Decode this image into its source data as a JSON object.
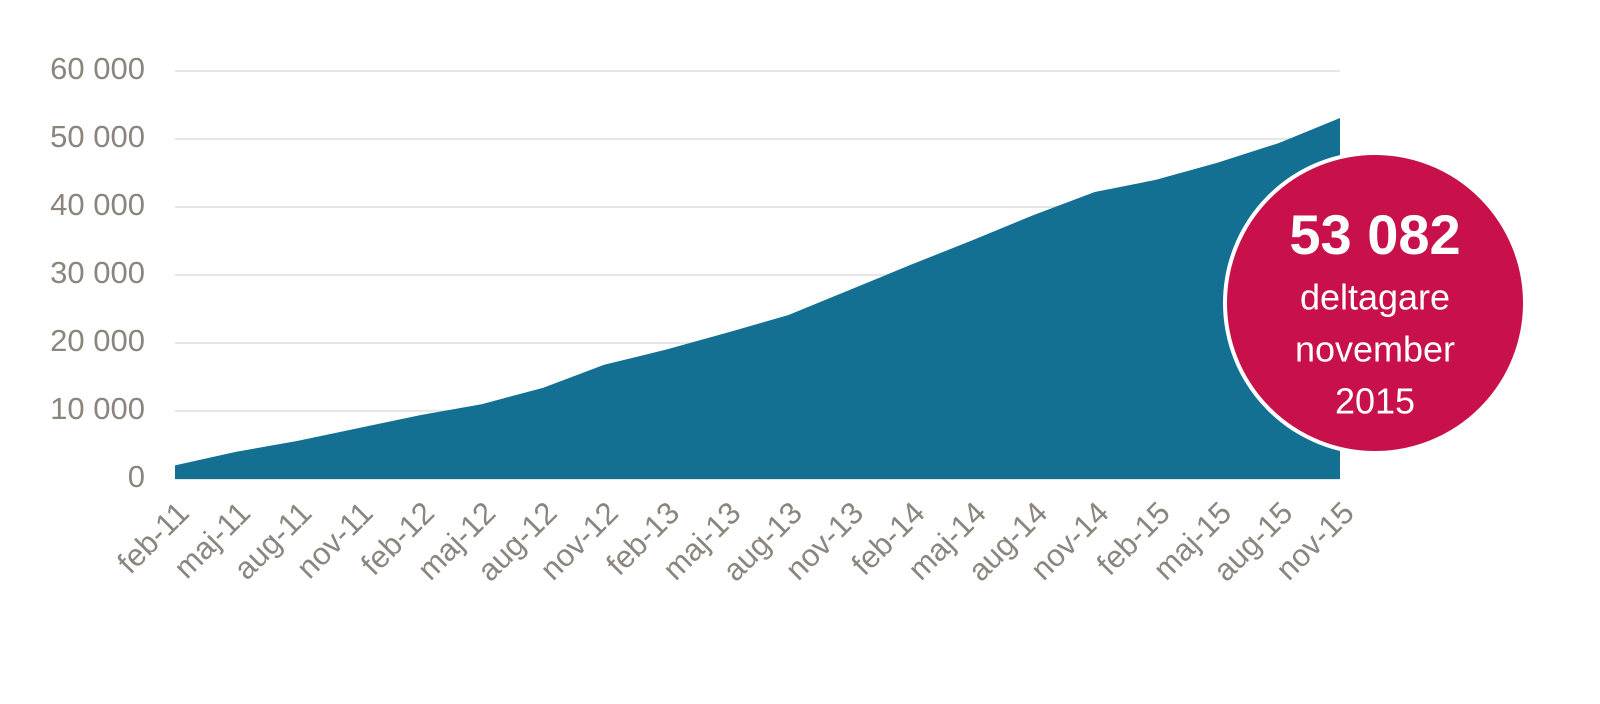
{
  "chart_data": {
    "type": "area",
    "categories": [
      "feb-11",
      "maj-11",
      "aug-11",
      "nov-11",
      "feb-12",
      "maj-12",
      "aug-12",
      "nov-12",
      "feb-13",
      "maj-13",
      "aug-13",
      "nov-13",
      "feb-14",
      "maj-14",
      "aug-14",
      "nov-14",
      "feb-15",
      "maj-15",
      "aug-15",
      "nov-15"
    ],
    "values": [
      2000,
      4000,
      5600,
      7500,
      9400,
      11000,
      13400,
      16800,
      19000,
      21500,
      24100,
      27800,
      31500,
      35100,
      38800,
      42200,
      44000,
      46500,
      49400,
      53082
    ],
    "color": "#137092",
    "ylim": [
      0,
      60000
    ],
    "yticks": [
      0,
      {
        "value": 10000,
        "label": "10 000"
      },
      {
        "value": 20000,
        "label": "20 000"
      },
      {
        "value": 30000,
        "label": "30 000"
      },
      {
        "value": 40000,
        "label": "40 000"
      },
      {
        "value": 50000,
        "label": "50 000"
      },
      {
        "value": 60000,
        "label": "60 000"
      }
    ],
    "grid": true,
    "annotation": {
      "value_label": "53 082",
      "lines": [
        "deltagare",
        "november",
        "2015"
      ],
      "color": "#c8104a"
    }
  }
}
